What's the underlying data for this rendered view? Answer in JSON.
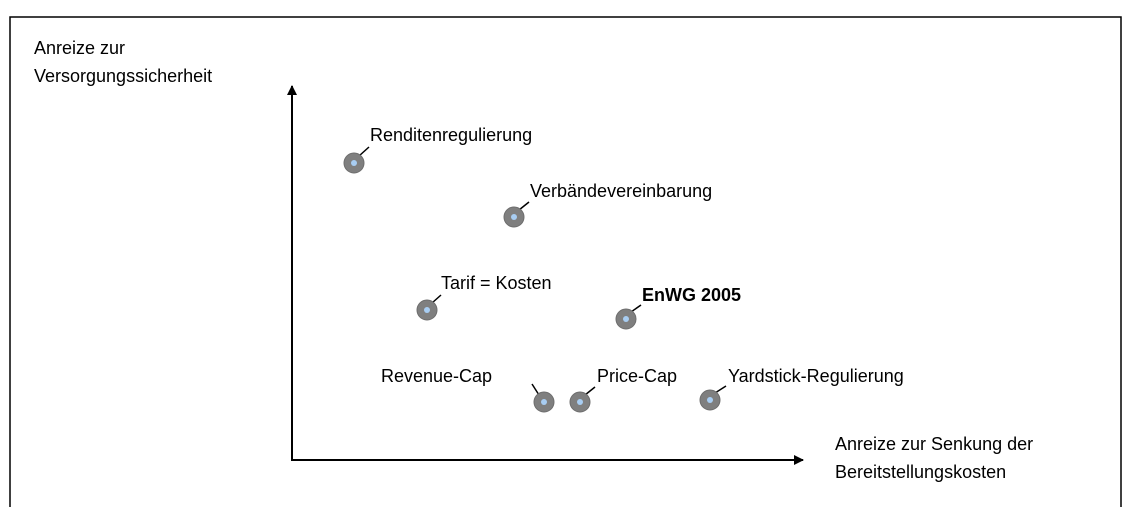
{
  "axes": {
    "y_label": [
      "Anreize zur",
      "Versorgungssicherheit"
    ],
    "x_label": [
      "Anreize zur Senkung der",
      "Bereitstellungskosten"
    ]
  },
  "nodes": [
    {
      "label": "Renditenregulierung"
    },
    {
      "label": "Verbändevereinbarung"
    },
    {
      "label": "Tarif = Kosten"
    },
    {
      "label": "EnWG 2005"
    },
    {
      "label": "Revenue-Cap"
    },
    {
      "label": "Price-Cap"
    },
    {
      "label": "Yardstick-Regulierung"
    }
  ]
}
